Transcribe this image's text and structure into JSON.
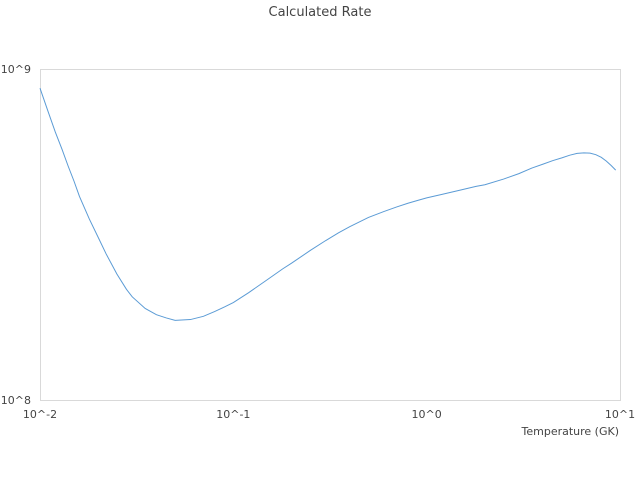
{
  "chart_data": {
    "type": "line",
    "title": "Calculated Rate",
    "xlabel": "Temperature (GK)",
    "ylabel": "",
    "x_scale": "log",
    "y_scale": "log",
    "xlim": [
      0.01,
      10
    ],
    "ylim": [
      100000000,
      1000000000
    ],
    "x_ticks": [
      0.01,
      0.1,
      1,
      10
    ],
    "x_tick_labels": [
      "10^-2",
      "10^-1",
      "10^0",
      "10^1"
    ],
    "y_ticks": [
      100000000,
      1000000000
    ],
    "y_tick_labels": [
      "10^8",
      "10^9"
    ],
    "grid": false,
    "legend": "none",
    "colors": {
      "series": "#5b9bd5",
      "frame": "#d9d9d9",
      "text": "#444444"
    },
    "series": [
      {
        "x": [
          0.01,
          0.011,
          0.012,
          0.013,
          0.014,
          0.015,
          0.016,
          0.018,
          0.02,
          0.022,
          0.025,
          0.028,
          0.03,
          0.035,
          0.04,
          0.045,
          0.05,
          0.06,
          0.07,
          0.08,
          0.09,
          0.1,
          0.12,
          0.15,
          0.18,
          0.2,
          0.25,
          0.3,
          0.35,
          0.4,
          0.5,
          0.6,
          0.7,
          0.8,
          0.9,
          1.0,
          1.2,
          1.5,
          1.8,
          2.0,
          2.5,
          3.0,
          3.5,
          4.0,
          4.5,
          5.0,
          5.5,
          6.0,
          6.5,
          7.0,
          7.5,
          8.0,
          8.5,
          9.0,
          9.5
        ],
        "y": [
          875000000,
          745000000,
          645000000,
          572000000,
          508000000,
          458000000,
          412000000,
          352000000,
          310000000,
          276000000,
          240000000,
          216000000,
          205000000,
          189000000,
          181000000,
          177000000,
          174000000,
          175000000,
          179000000,
          185000000,
          191000000,
          197000000,
          211000000,
          231000000,
          249000000,
          259000000,
          283000000,
          303000000,
          320000000,
          334000000,
          356000000,
          371000000,
          383000000,
          393000000,
          401000000,
          408000000,
          418000000,
          431000000,
          442000000,
          447000000,
          465000000,
          483000000,
          502000000,
          516000000,
          529000000,
          539000000,
          549000000,
          556000000,
          558000000,
          557000000,
          551000000,
          541000000,
          527000000,
          511000000,
          495000000
        ]
      }
    ]
  }
}
